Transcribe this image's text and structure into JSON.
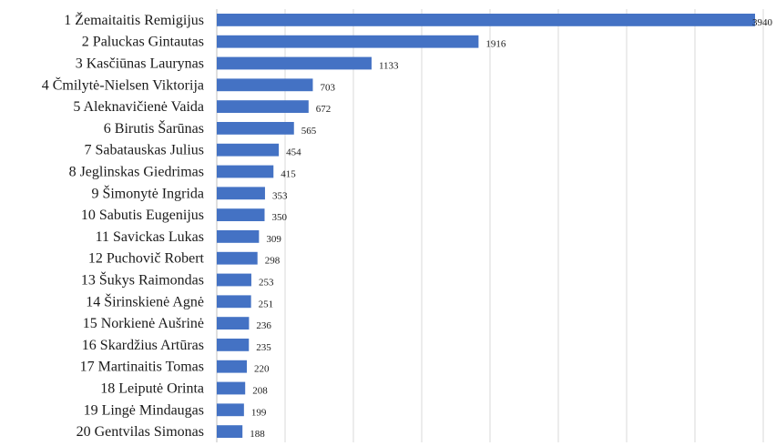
{
  "chart_data": {
    "type": "bar",
    "orientation": "horizontal",
    "categories": [
      "1 Žemaitaitis Remigijus",
      "2 Paluckas Gintautas",
      "3 Kasčiūnas Laurynas",
      "4 Čmilytė-Nielsen Viktorija",
      "5 Aleknavičienė Vaida",
      "6 Birutis Šarūnas",
      "7 Sabatauskas Julius",
      "8 Jeglinskas Giedrimas",
      "9 Šimonytė Ingrida",
      "10 Sabutis Eugenijus",
      "11 Savickas Lukas",
      "12 Puchovič Robert",
      "13 Šukys Raimondas",
      "14 Širinskienė Agnė",
      "15 Norkienė Aušrinė",
      "16 Skardžius Artūras",
      "17 Martinaitis Tomas",
      "18 Leiputė Orinta",
      "19 Lingė Mindaugas",
      "20 Gentvilas Simonas"
    ],
    "values": [
      3940,
      1916,
      1133,
      703,
      672,
      565,
      454,
      415,
      353,
      350,
      309,
      298,
      253,
      251,
      236,
      235,
      220,
      208,
      199,
      188
    ],
    "xlim": [
      0,
      4000
    ],
    "grid": true,
    "data_labels": true,
    "legend": "none",
    "bar_color": "#4472c4"
  }
}
